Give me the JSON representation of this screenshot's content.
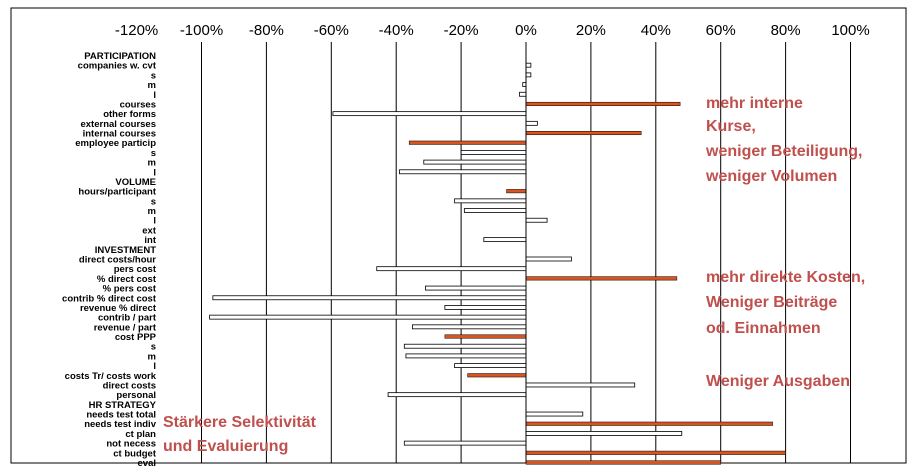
{
  "chart_data": {
    "type": "bar",
    "orientation": "horizontal",
    "xlim": [
      -120,
      100
    ],
    "x_ticks": [
      "-120%",
      "-100%",
      "-80%",
      "-60%",
      "-40%",
      "-20%",
      "0%",
      "20%",
      "40%",
      "60%",
      "80%",
      "100%"
    ],
    "grid": true,
    "colors": {
      "highlight": "#D9541E",
      "normal": "#ffffff",
      "annotation": "#C0504D"
    },
    "categories": [
      "PARTICIPATION",
      "companies w. cvt",
      "s",
      "m",
      "l",
      "courses",
      "other forms",
      "external courses",
      "internal courses",
      "employee particip",
      "s",
      "m",
      "l",
      "VOLUME",
      "hours/participant",
      "s",
      "m",
      "l",
      "ext",
      "int",
      "INVESTMENT",
      "direct costs/hour",
      "pers cost",
      "% direct cost",
      "% pers cost",
      "contrib % direct cost",
      "revenue % direct",
      "contrib / part",
      "revenue / part",
      "cost PPP",
      "s",
      "m",
      "l",
      "costs Tr/ costs work",
      "direct costs",
      "personal",
      "HR STRATEGY",
      "needs test total",
      "needs test indiv",
      "ct plan",
      "not necess",
      "ct budget",
      "eval"
    ],
    "values": [
      null,
      1.5,
      1.5,
      -1,
      -2,
      47.5,
      -59.5,
      3.5,
      35.5,
      -36,
      -20,
      -31.5,
      -39,
      null,
      -6,
      -22,
      -19,
      6.5,
      null,
      -13,
      null,
      14,
      -46,
      46.5,
      -31,
      -96.5,
      -25,
      -97.5,
      -35,
      -25,
      -37.5,
      -37,
      -22,
      -18,
      33.5,
      -42.5,
      null,
      17.5,
      76,
      48,
      -37.5,
      80,
      60
    ],
    "highlighted": [
      false,
      false,
      false,
      false,
      false,
      true,
      false,
      false,
      true,
      true,
      false,
      false,
      false,
      false,
      true,
      false,
      false,
      false,
      false,
      false,
      false,
      false,
      false,
      true,
      false,
      false,
      false,
      false,
      false,
      true,
      false,
      false,
      false,
      true,
      false,
      false,
      false,
      false,
      true,
      false,
      false,
      true,
      true
    ]
  },
  "annotations": {
    "right_top": [
      "mehr interne",
      "Kurse,",
      "weniger Beteiligung,",
      "weniger Volumen"
    ],
    "right_mid": [
      "mehr direkte Kosten,",
      "Weniger Beiträge",
      "od. Einnahmen"
    ],
    "right_low": [
      "Weniger Ausgaben"
    ],
    "bottom_left": [
      "Stärkere Selektivität",
      "und Evaluierung"
    ]
  }
}
